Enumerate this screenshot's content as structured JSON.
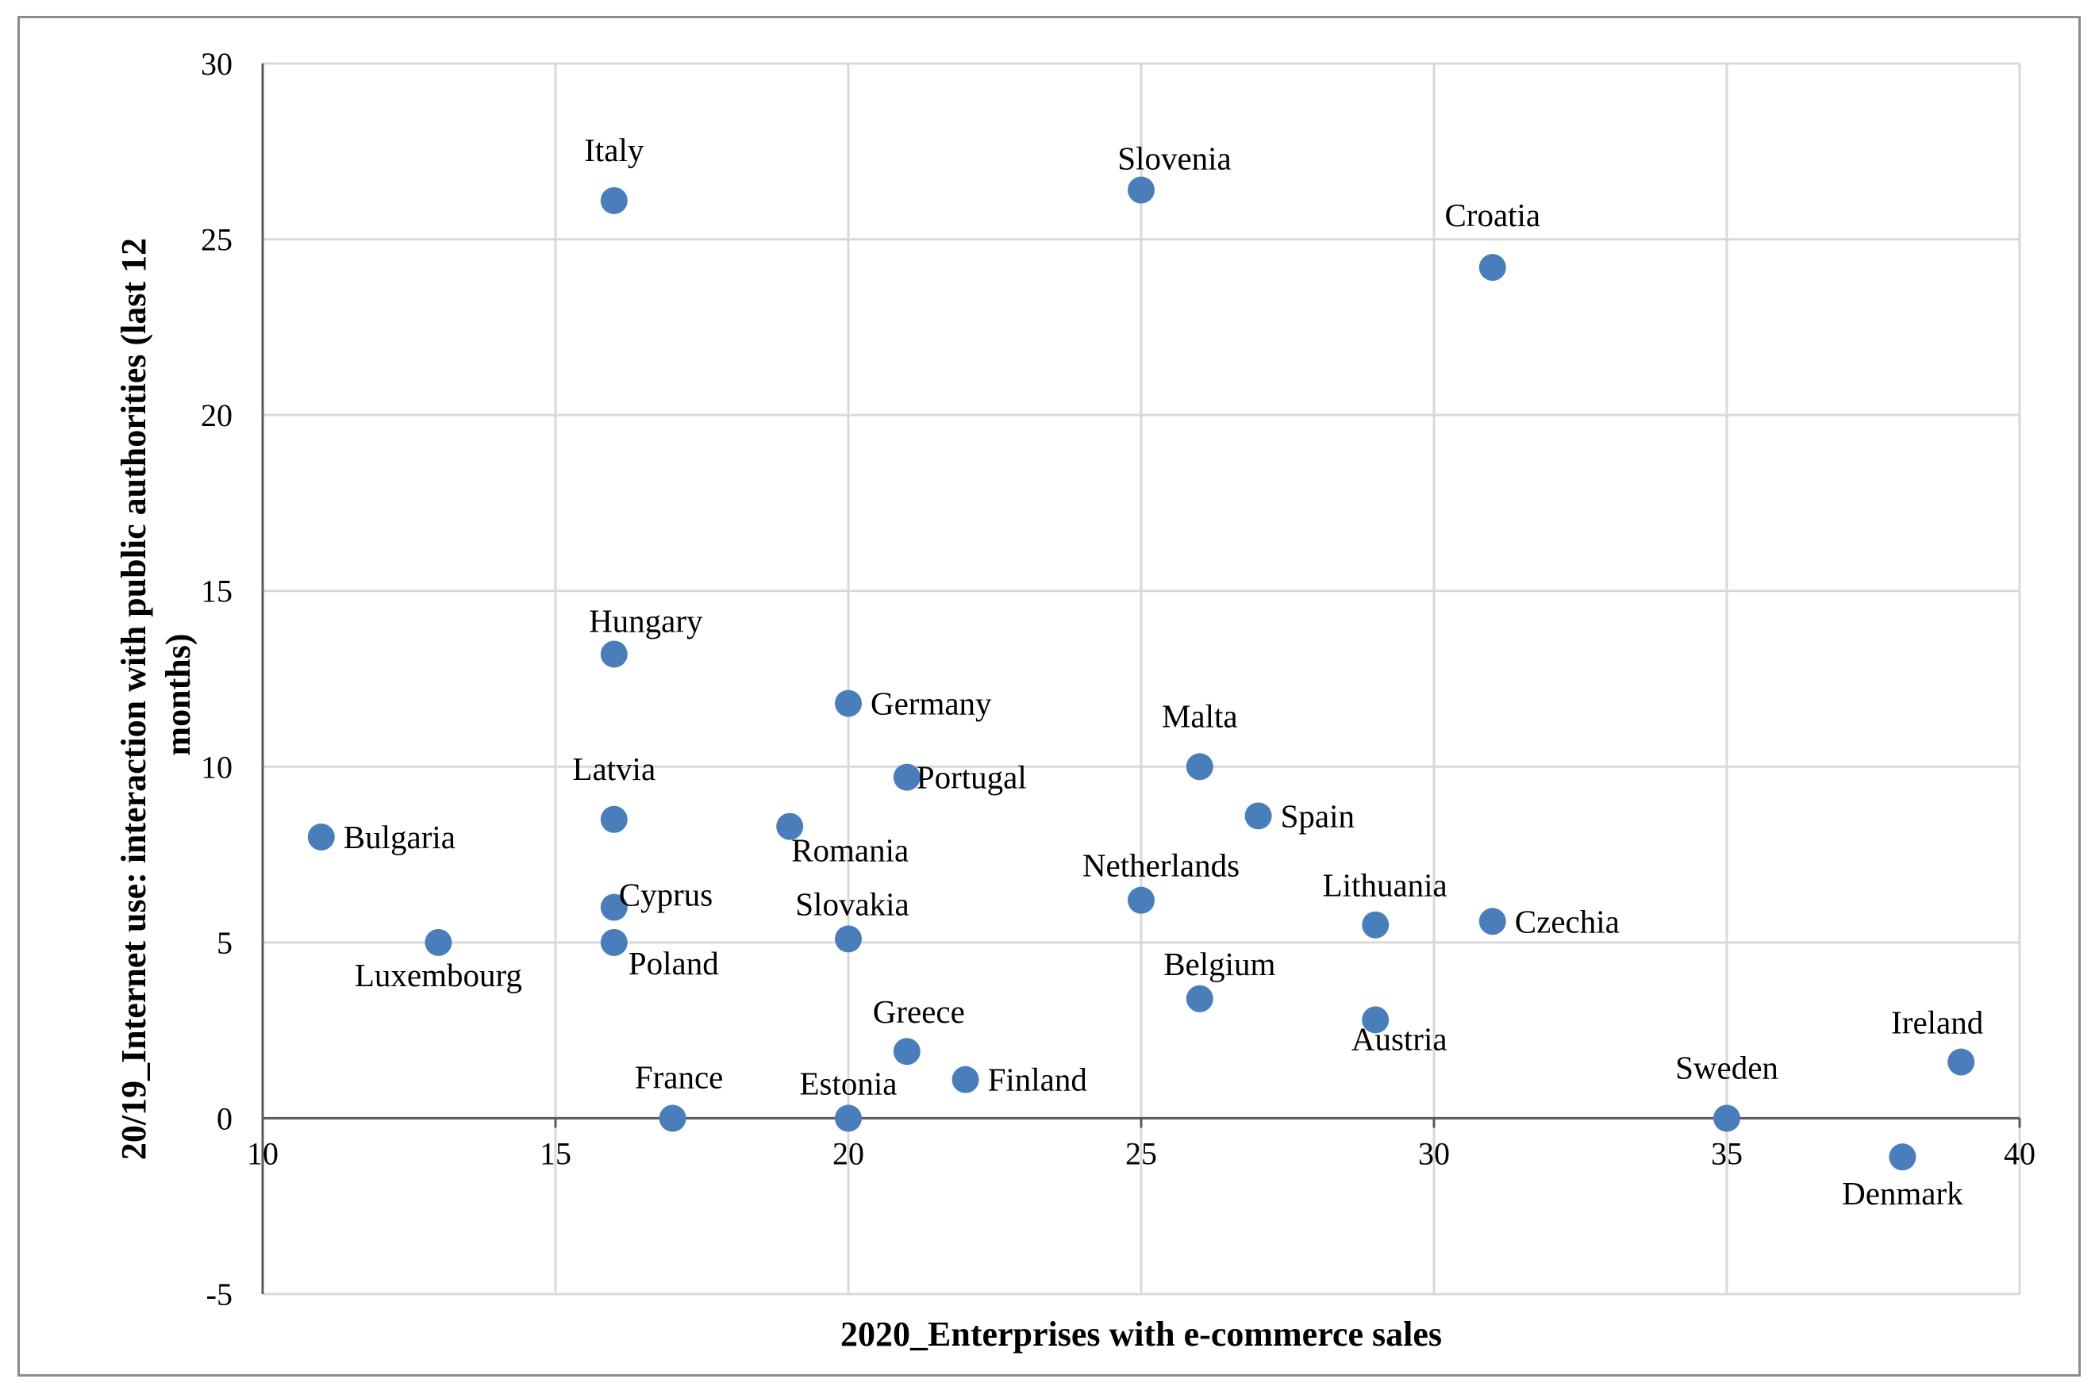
{
  "chart_data": {
    "type": "scatter",
    "title": "",
    "xlabel": "2020_Enterprises with e-commerce sales",
    "ylabel_lines": [
      "20/19_Internet use: interaction with public authorities (last 12",
      "months)"
    ],
    "xlim": [
      10,
      40
    ],
    "ylim": [
      -5,
      30
    ],
    "xticks": [
      10,
      15,
      20,
      25,
      30,
      35,
      40
    ],
    "yticks": [
      -5,
      0,
      5,
      10,
      15,
      20,
      25,
      30
    ],
    "grid": true,
    "marker_color": "#4a7ebb",
    "grid_color": "#d9d9d9",
    "points": [
      {
        "label": "Italy",
        "x": 16,
        "y": 26.1,
        "pos": "above"
      },
      {
        "label": "Slovenia",
        "x": 25,
        "y": 26.4,
        "pos": "above-right"
      },
      {
        "label": "Croatia",
        "x": 31,
        "y": 24.2,
        "pos": "above"
      },
      {
        "label": "Hungary",
        "x": 16,
        "y": 13.2,
        "pos": "above-right"
      },
      {
        "label": "Germany",
        "x": 20,
        "y": 11.8,
        "pos": "right"
      },
      {
        "label": "Malta",
        "x": 26,
        "y": 10.0,
        "pos": "above"
      },
      {
        "label": "Portugal",
        "x": 21,
        "y": 9.7,
        "pos": "right"
      },
      {
        "label": "Latvia",
        "x": 16,
        "y": 8.5,
        "pos": "above"
      },
      {
        "label": "Spain",
        "x": 27,
        "y": 8.6,
        "pos": "right"
      },
      {
        "label": "Romania",
        "x": 19,
        "y": 8.3,
        "pos": "below-right"
      },
      {
        "label": "Bulgaria",
        "x": 11,
        "y": 8.0,
        "pos": "right"
      },
      {
        "label": "Netherlands",
        "x": 25,
        "y": 6.2,
        "pos": "above-right"
      },
      {
        "label": "Cyprus",
        "x": 16,
        "y": 6.0,
        "pos": "right-up"
      },
      {
        "label": "Lithuania",
        "x": 29,
        "y": 5.5,
        "pos": "above-right"
      },
      {
        "label": "Czechia",
        "x": 31,
        "y": 5.6,
        "pos": "right"
      },
      {
        "label": "Slovakia",
        "x": 20,
        "y": 5.1,
        "pos": "above"
      },
      {
        "label": "Luxembourg",
        "x": 13,
        "y": 5.0,
        "pos": "below"
      },
      {
        "label": "Poland",
        "x": 16,
        "y": 5.0,
        "pos": "below-right"
      },
      {
        "label": "Belgium",
        "x": 26,
        "y": 3.4,
        "pos": "above-right"
      },
      {
        "label": "Austria",
        "x": 29,
        "y": 2.8,
        "pos": "below-right"
      },
      {
        "label": "Greece",
        "x": 21,
        "y": 1.9,
        "pos": "above"
      },
      {
        "label": "Ireland",
        "x": 39,
        "y": 1.6,
        "pos": "above-left"
      },
      {
        "label": "Finland",
        "x": 22,
        "y": 1.1,
        "pos": "right"
      },
      {
        "label": "France",
        "x": 17,
        "y": 0.0,
        "pos": "above"
      },
      {
        "label": "Estonia",
        "x": 20,
        "y": 0.0,
        "pos": "above"
      },
      {
        "label": "Sweden",
        "x": 35,
        "y": 0.0,
        "pos": "above"
      },
      {
        "label": "Denmark",
        "x": 38,
        "y": -1.1,
        "pos": "below"
      }
    ]
  }
}
